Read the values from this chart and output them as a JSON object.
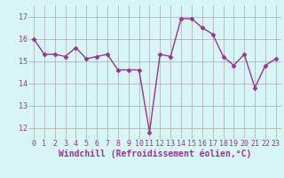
{
  "x": [
    0,
    1,
    2,
    3,
    4,
    5,
    6,
    7,
    8,
    9,
    10,
    11,
    12,
    13,
    14,
    15,
    16,
    17,
    18,
    19,
    20,
    21,
    22,
    23
  ],
  "y": [
    16.0,
    15.3,
    15.3,
    15.2,
    15.6,
    15.1,
    15.2,
    15.3,
    14.6,
    14.6,
    14.6,
    11.8,
    15.3,
    15.2,
    16.9,
    16.9,
    16.5,
    16.2,
    15.2,
    14.8,
    15.3,
    13.8,
    14.8,
    15.1
  ],
  "line_color": "#993399",
  "marker": "D",
  "marker_size": 2.5,
  "bg_color": "#d8f5f5",
  "grid_color": "#aaaaaa",
  "xlabel": "Windchill (Refroidissement éolien,°C)",
  "xlabel_color": "#993399",
  "tick_color": "#993399",
  "ylim": [
    11.5,
    17.5
  ],
  "yticks": [
    12,
    13,
    14,
    15,
    16,
    17
  ],
  "xticks": [
    0,
    1,
    2,
    3,
    4,
    5,
    6,
    7,
    8,
    9,
    10,
    11,
    12,
    13,
    14,
    15,
    16,
    17,
    18,
    19,
    20,
    21,
    22,
    23
  ],
  "tick_fontsize": 6.0,
  "xlabel_fontsize": 7.0,
  "linewidth": 1.0
}
